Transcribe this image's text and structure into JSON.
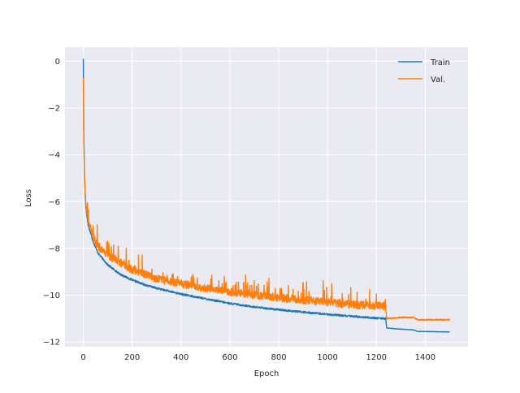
{
  "chart_data": {
    "type": "line",
    "title": "",
    "xlabel": "Epoch",
    "ylabel": "Loss",
    "xlim": [
      -75,
      1575
    ],
    "ylim": [
      -12.2,
      0.6
    ],
    "x_ticks": [
      0,
      200,
      400,
      600,
      800,
      1000,
      1200,
      1400
    ],
    "y_ticks": [
      0,
      -2,
      -4,
      -6,
      -8,
      -10,
      -12
    ],
    "x_tick_labels": [
      "0",
      "200",
      "400",
      "600",
      "800",
      "1000",
      "1200",
      "1400"
    ],
    "y_tick_labels": [
      "0",
      "−2",
      "−4",
      "−6",
      "−8",
      "−10",
      "−12"
    ],
    "grid": true,
    "style": "seaborn-darkgrid",
    "background": "#eaeaf2",
    "legend_position": "top-right",
    "series": [
      {
        "name": "Train",
        "color": "#1f77b4",
        "noise": 0.08,
        "points": [
          [
            0,
            0.1
          ],
          [
            2,
            -3.0
          ],
          [
            5,
            -5.0
          ],
          [
            10,
            -6.2
          ],
          [
            20,
            -7.0
          ],
          [
            40,
            -7.7
          ],
          [
            60,
            -8.2
          ],
          [
            100,
            -8.7
          ],
          [
            150,
            -9.1
          ],
          [
            200,
            -9.35
          ],
          [
            250,
            -9.55
          ],
          [
            300,
            -9.7
          ],
          [
            400,
            -9.95
          ],
          [
            500,
            -10.15
          ],
          [
            600,
            -10.35
          ],
          [
            700,
            -10.5
          ],
          [
            800,
            -10.62
          ],
          [
            900,
            -10.72
          ],
          [
            1000,
            -10.82
          ],
          [
            1100,
            -10.9
          ],
          [
            1200,
            -10.98
          ],
          [
            1238,
            -11.0
          ],
          [
            1242,
            -11.4
          ],
          [
            1300,
            -11.45
          ],
          [
            1350,
            -11.48
          ],
          [
            1370,
            -11.55
          ],
          [
            1400,
            -11.55
          ],
          [
            1500,
            -11.57
          ]
        ]
      },
      {
        "name": "Val.",
        "color": "#ff7f0e",
        "noise": 0.35,
        "points": [
          [
            0,
            -0.7
          ],
          [
            2,
            -3.5
          ],
          [
            5,
            -5.2
          ],
          [
            10,
            -6.1
          ],
          [
            20,
            -6.8
          ],
          [
            40,
            -7.5
          ],
          [
            60,
            -7.9
          ],
          [
            100,
            -8.3
          ],
          [
            150,
            -8.6
          ],
          [
            200,
            -8.9
          ],
          [
            250,
            -9.1
          ],
          [
            300,
            -9.3
          ],
          [
            400,
            -9.5
          ],
          [
            500,
            -9.7
          ],
          [
            600,
            -9.85
          ],
          [
            700,
            -10.0
          ],
          [
            800,
            -10.1
          ],
          [
            900,
            -10.2
          ],
          [
            1000,
            -10.3
          ],
          [
            1100,
            -10.4
          ],
          [
            1200,
            -10.45
          ],
          [
            1238,
            -10.5
          ],
          [
            1242,
            -11.0
          ],
          [
            1300,
            -10.95
          ],
          [
            1350,
            -10.95
          ],
          [
            1370,
            -11.05
          ],
          [
            1400,
            -11.05
          ],
          [
            1500,
            -11.05
          ]
        ]
      }
    ]
  }
}
